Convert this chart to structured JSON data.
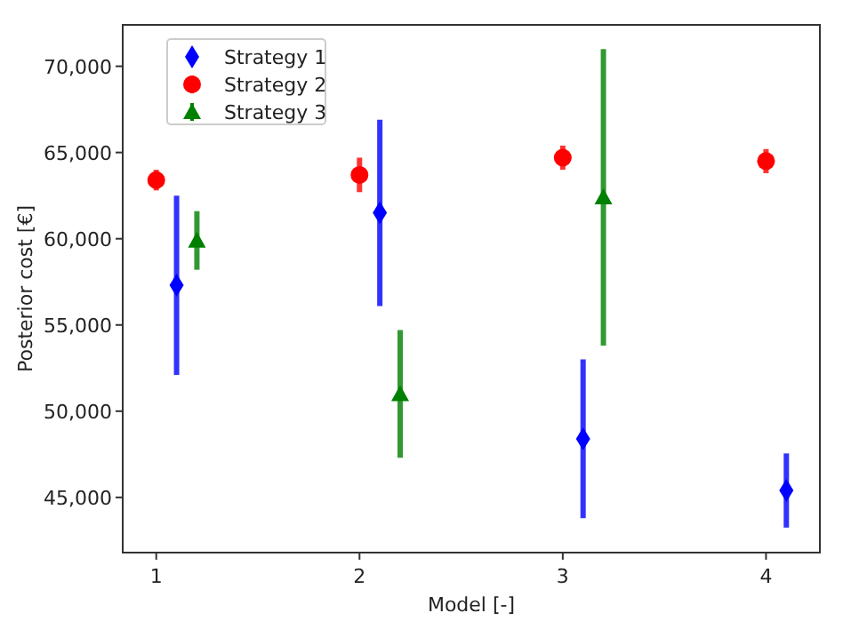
{
  "chart_data": {
    "type": "scatter",
    "xlabel": "Model [-]",
    "ylabel": "Posterior cost [€]",
    "xlim": [
      0.835,
      4.265
    ],
    "xticks": [
      1,
      2,
      3,
      4
    ],
    "ylim": [
      41800,
      72400
    ],
    "yticks": [
      {
        "value": 45000,
        "label": "45,000"
      },
      {
        "value": 50000,
        "label": "50,000"
      },
      {
        "value": 55000,
        "label": "55,000"
      },
      {
        "value": 60000,
        "label": "60,000"
      },
      {
        "value": 65000,
        "label": "65,000"
      },
      {
        "value": 70000,
        "label": "70,000"
      }
    ],
    "grid": false,
    "legend": "top left",
    "series": [
      {
        "name": "Strategy 1",
        "color": "#0000ff",
        "marker": "diamond",
        "x": [
          1.1,
          2.1,
          3.1,
          4.1
        ],
        "values": [
          57300,
          61500,
          48400,
          45400
        ],
        "errors": [
          5200,
          5400,
          4600,
          2150
        ]
      },
      {
        "name": "Strategy 2",
        "color": "#ff0000",
        "marker": "circle",
        "x": [
          1,
          2,
          3,
          4
        ],
        "values": [
          63400,
          63700,
          64700,
          64500
        ],
        "errors": [
          600,
          1000,
          700,
          700
        ]
      },
      {
        "name": "Strategy 3",
        "color": "#008000",
        "marker": "triangle",
        "x": [
          1.2,
          2.2,
          3.2
        ],
        "values": [
          59900,
          51000,
          62400
        ],
        "errors": [
          1700,
          3700,
          8600
        ]
      }
    ]
  }
}
